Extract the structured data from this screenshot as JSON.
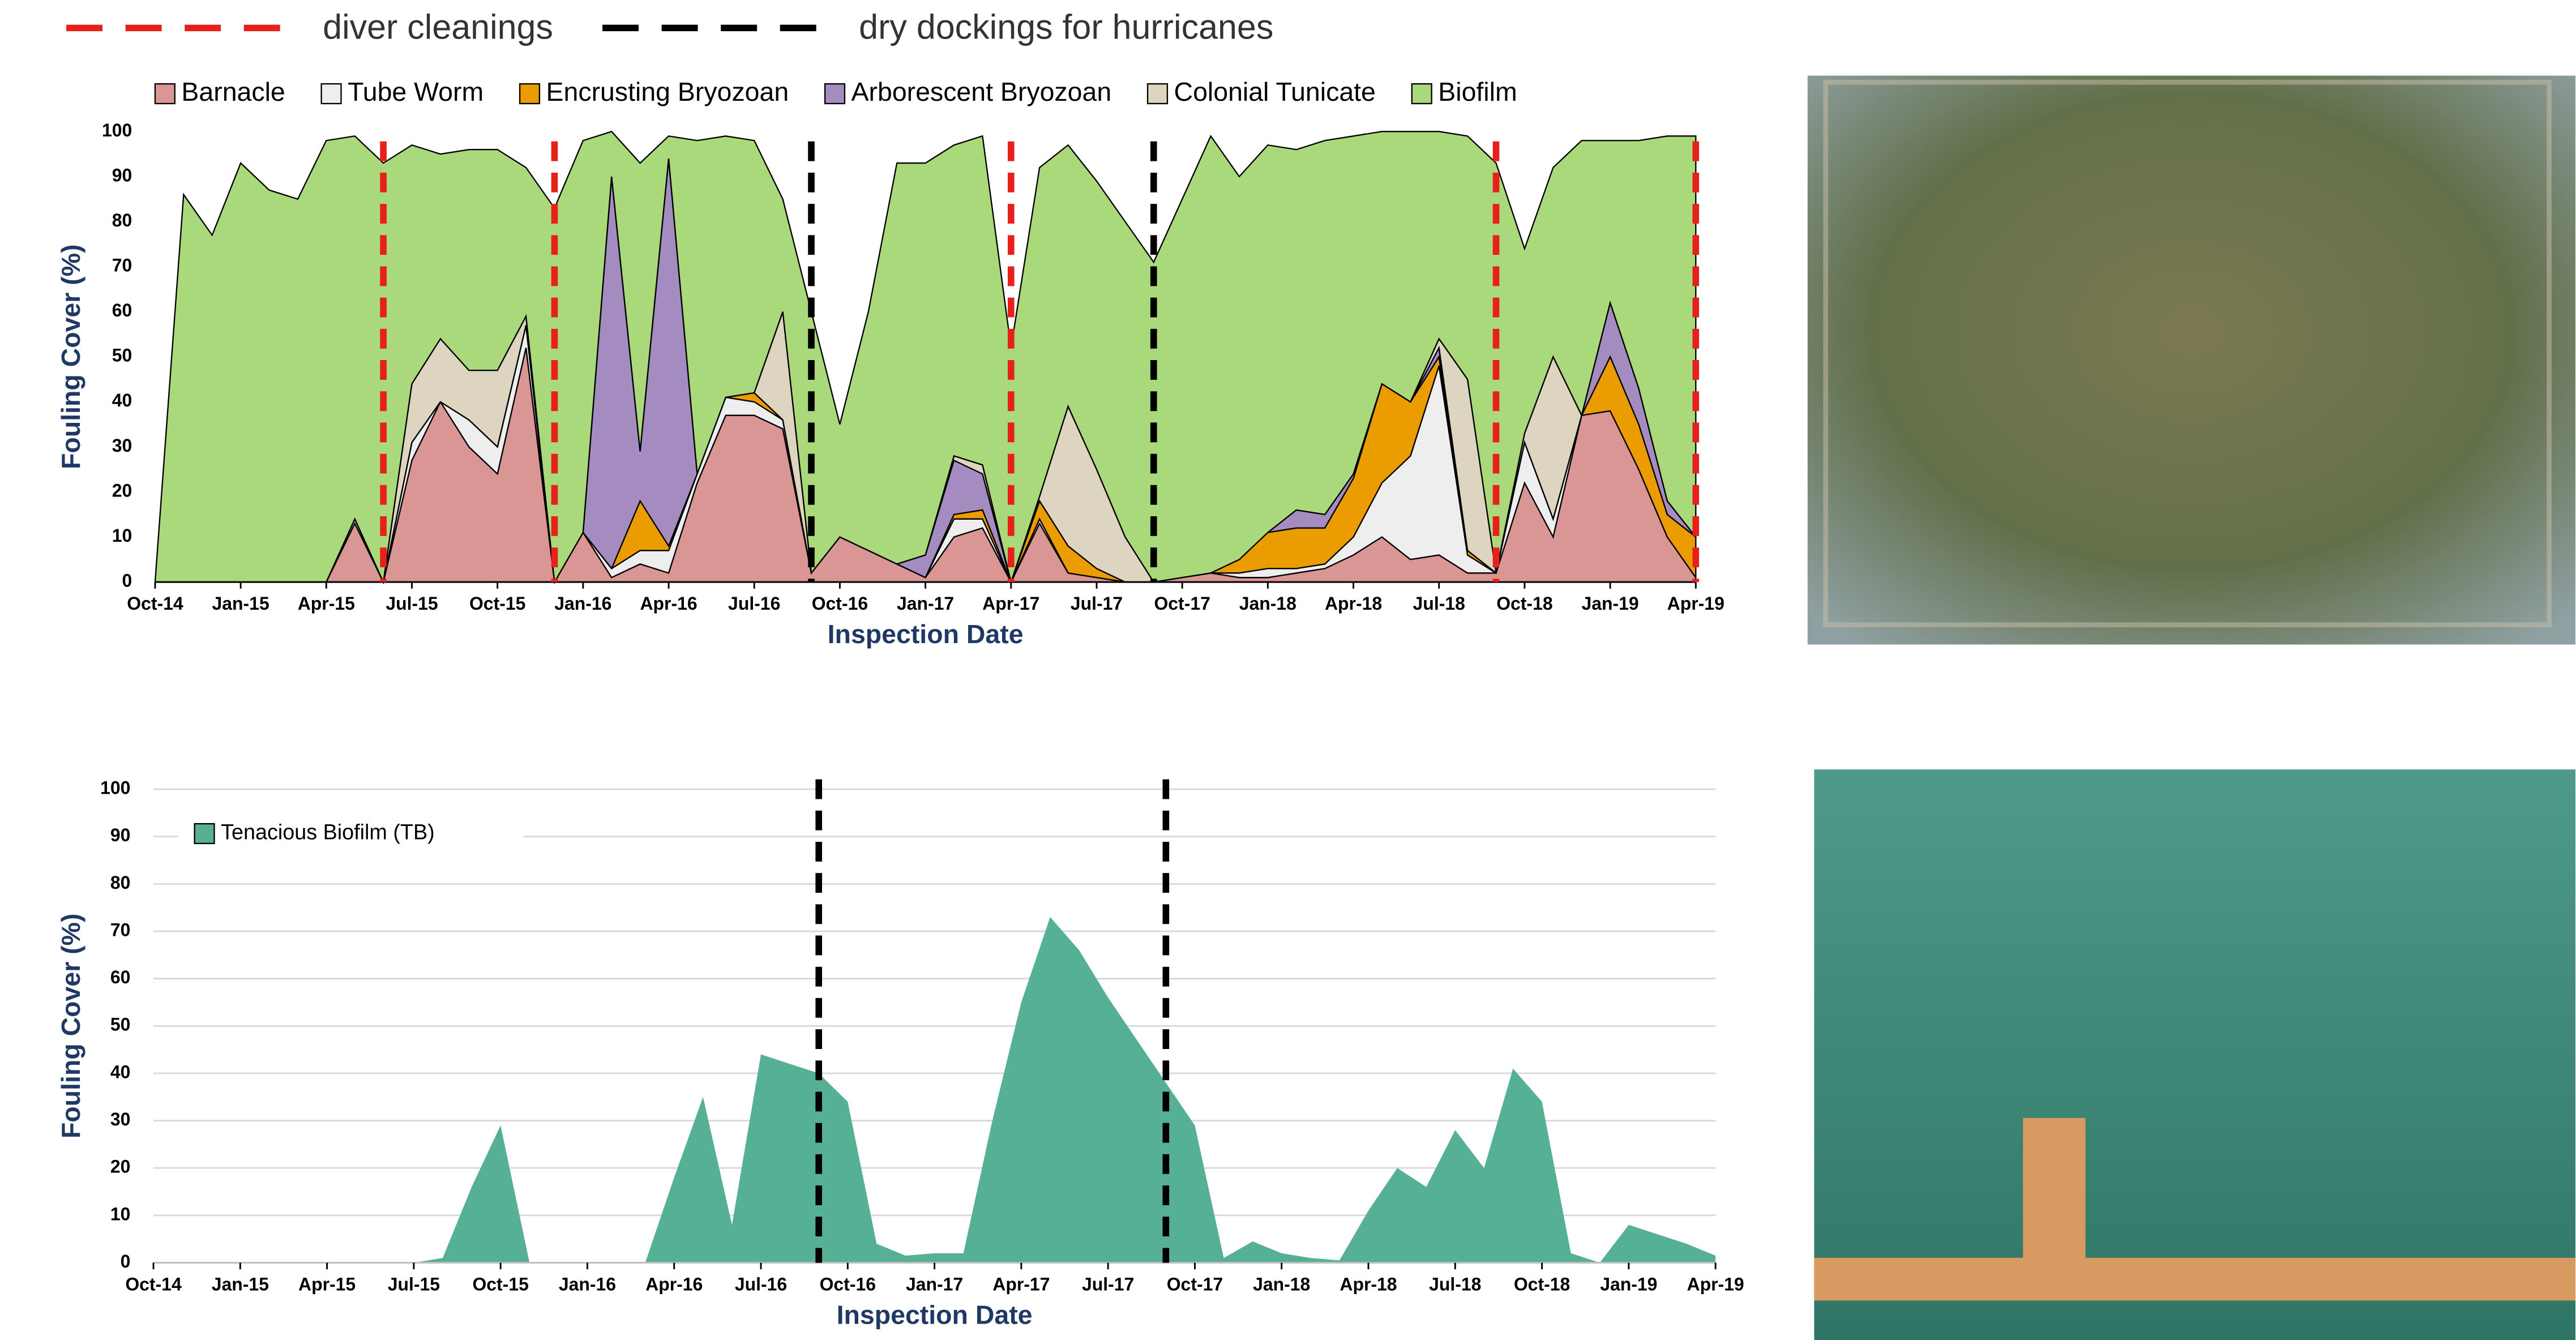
{
  "chart_data": [
    {
      "type": "area",
      "stacked": true,
      "legend": "top",
      "ylabel": "Fouling Cover (%)",
      "xlabel": "Inspection Date",
      "x": [
        "2014-10",
        "2014-11",
        "2014-12",
        "2015-01",
        "2015-02",
        "2015-03",
        "2015-04",
        "2015-05",
        "2015-06",
        "2015-07",
        "2015-08",
        "2015-09",
        "2015-10",
        "2015-11",
        "2015-12",
        "2016-01",
        "2016-02",
        "2016-03",
        "2016-04",
        "2016-05",
        "2016-06",
        "2016-07",
        "2016-08",
        "2016-09",
        "2016-10",
        "2016-11",
        "2016-12",
        "2017-01",
        "2017-02",
        "2017-03",
        "2017-04",
        "2017-05",
        "2017-06",
        "2017-07",
        "2017-08",
        "2017-09",
        "2017-10",
        "2017-11",
        "2017-12",
        "2018-01",
        "2018-02",
        "2018-03",
        "2018-04",
        "2018-05",
        "2018-06",
        "2018-07",
        "2018-08",
        "2018-09",
        "2018-10",
        "2018-11",
        "2018-12",
        "2019-01",
        "2019-02",
        "2019-03",
        "2019-04"
      ],
      "series": [
        {
          "name": "Barnacle",
          "color": "#d99694",
          "values": [
            0,
            0,
            0,
            0,
            0,
            0,
            0,
            13,
            0,
            27,
            40,
            30,
            24,
            52,
            0,
            11,
            1,
            4,
            2,
            22,
            37,
            37,
            34,
            2,
            10,
            7,
            4,
            1,
            10,
            12,
            0,
            13,
            2,
            1,
            0,
            0,
            1,
            2,
            1,
            1,
            2,
            3,
            6,
            10,
            5,
            6,
            2,
            2,
            22,
            10,
            37,
            38,
            25,
            10,
            1
          ]
        },
        {
          "name": "Tube Worm",
          "color": "#eeeeee",
          "values": [
            0,
            0,
            0,
            0,
            0,
            0,
            0,
            1,
            0,
            4,
            0,
            6,
            6,
            5,
            0,
            0,
            2,
            3,
            5,
            2,
            4,
            3,
            2,
            0,
            0,
            0,
            0,
            0,
            4,
            2,
            0,
            1,
            0,
            0,
            0,
            0,
            0,
            0,
            1,
            2,
            1,
            1,
            4,
            12,
            23,
            42,
            4,
            0,
            9,
            4,
            0,
            0,
            0,
            0,
            0
          ]
        },
        {
          "name": "Encrusting Bryozoan",
          "color": "#eb9c00",
          "values": [
            0,
            0,
            0,
            0,
            0,
            0,
            0,
            0,
            0,
            0,
            0,
            0,
            0,
            0,
            0,
            0,
            0,
            11,
            1,
            0,
            0,
            2,
            0,
            0,
            0,
            0,
            0,
            0,
            1,
            2,
            0,
            4,
            6,
            2,
            0,
            0,
            0,
            0,
            3,
            8,
            9,
            8,
            13,
            22,
            12,
            2,
            1,
            0,
            0,
            0,
            0,
            12,
            10,
            5,
            9
          ]
        },
        {
          "name": "Arborescent Bryozoan",
          "color": "#a48cc0",
          "values": [
            0,
            0,
            0,
            0,
            0,
            0,
            0,
            0,
            0,
            0,
            0,
            0,
            0,
            0,
            0,
            0,
            87,
            11,
            86,
            0,
            0,
            0,
            0,
            0,
            0,
            0,
            0,
            5,
            12,
            8,
            0,
            0,
            0,
            0,
            0,
            0,
            0,
            0,
            0,
            0,
            4,
            3,
            1,
            0,
            0,
            2,
            0,
            0,
            0,
            0,
            0,
            12,
            8,
            3,
            0
          ]
        },
        {
          "name": "Colonial Tunicate",
          "color": "#ddd5c0",
          "values": [
            0,
            0,
            0,
            0,
            0,
            0,
            0,
            0,
            0,
            13,
            14,
            11,
            17,
            2,
            0,
            0,
            0,
            0,
            0,
            0,
            0,
            0,
            24,
            0,
            0,
            0,
            0,
            0,
            1,
            2,
            0,
            1,
            31,
            22,
            10,
            0,
            0,
            0,
            0,
            0,
            0,
            0,
            0,
            0,
            0,
            2,
            38,
            0,
            2,
            36,
            0,
            0,
            0,
            0,
            0
          ]
        },
        {
          "name": "Biofilm",
          "color": "#a9d97a",
          "values": [
            0,
            86,
            77,
            93,
            87,
            85,
            98,
            85,
            93,
            53,
            41,
            49,
            49,
            33,
            83,
            87,
            10,
            64,
            5,
            74,
            58,
            56,
            25,
            58,
            25,
            53,
            89,
            87,
            69,
            73,
            52,
            73,
            58,
            64,
            70,
            71,
            84,
            97,
            85,
            86,
            80,
            83,
            75,
            56,
            60,
            46,
            54,
            91,
            41,
            42,
            61,
            36,
            55,
            81,
            89
          ]
        }
      ],
      "event_lines": [
        {
          "name": "diver cleanings",
          "color": "#e8201c",
          "dates": [
            "2015-06",
            "2015-12",
            "2017-04",
            "2018-09",
            "2019-04"
          ]
        },
        {
          "name": "dry dockings for hurricanes",
          "color": "#000000",
          "dates": [
            "2016-09",
            "2017-09"
          ]
        }
      ],
      "xlim": [
        "2014-10",
        "2019-04"
      ],
      "xticks": [
        {
          "value": "2014-10",
          "label": "Oct-14"
        },
        {
          "value": "2015-01",
          "label": "Jan-15"
        },
        {
          "value": "2015-04",
          "label": "Apr-15"
        },
        {
          "value": "2015-07",
          "label": "Jul-15"
        },
        {
          "value": "2015-10",
          "label": "Oct-15"
        },
        {
          "value": "2016-01",
          "label": "Jan-16"
        },
        {
          "value": "2016-04",
          "label": "Apr-16"
        },
        {
          "value": "2016-07",
          "label": "Jul-16"
        },
        {
          "value": "2016-10",
          "label": "Oct-16"
        },
        {
          "value": "2017-01",
          "label": "Jan-17"
        },
        {
          "value": "2017-04",
          "label": "Apr-17"
        },
        {
          "value": "2017-07",
          "label": "Jul-17"
        },
        {
          "value": "2017-10",
          "label": "Oct-17"
        },
        {
          "value": "2018-01",
          "label": "Jan-18"
        },
        {
          "value": "2018-04",
          "label": "Apr-18"
        },
        {
          "value": "2018-07",
          "label": "Jul-18"
        },
        {
          "value": "2018-10",
          "label": "Oct-18"
        },
        {
          "value": "2019-01",
          "label": "Jan-19"
        },
        {
          "value": "2019-04",
          "label": "Apr-19"
        }
      ],
      "ylim": [
        0,
        100
      ],
      "yticks": [
        0,
        10,
        20,
        30,
        40,
        50,
        60,
        70,
        80,
        90,
        100
      ],
      "grid": false
    },
    {
      "type": "area",
      "stacked": false,
      "legend": "upper left",
      "ylabel": "Fouling Cover (%)",
      "xlabel": "Inspection Date",
      "x": [
        "2014-10",
        "2014-11",
        "2014-12",
        "2015-01",
        "2015-02",
        "2015-03",
        "2015-04",
        "2015-05",
        "2015-06",
        "2015-07",
        "2015-08",
        "2015-09",
        "2015-10",
        "2015-11",
        "2015-12",
        "2016-01",
        "2016-02",
        "2016-03",
        "2016-04",
        "2016-05",
        "2016-06",
        "2016-07",
        "2016-08",
        "2016-09",
        "2016-10",
        "2016-11",
        "2016-12",
        "2017-01",
        "2017-02",
        "2017-03",
        "2017-04",
        "2017-05",
        "2017-06",
        "2017-07",
        "2017-08",
        "2017-09",
        "2017-10",
        "2017-11",
        "2017-12",
        "2018-01",
        "2018-02",
        "2018-03",
        "2018-04",
        "2018-05",
        "2018-06",
        "2018-07",
        "2018-08",
        "2018-09",
        "2018-10",
        "2018-11",
        "2018-12",
        "2019-01",
        "2019-02",
        "2019-03",
        "2019-04"
      ],
      "series": [
        {
          "name": "Tenacious Biofilm (TB)",
          "color": "#55b096",
          "values": [
            0,
            0,
            0,
            0,
            0,
            0,
            0,
            0,
            0,
            0,
            1,
            16,
            29,
            0,
            0,
            0,
            0,
            0,
            18,
            35,
            8,
            44,
            42,
            40,
            34,
            4,
            1.5,
            2,
            2,
            30,
            55,
            73,
            66,
            56,
            47,
            38,
            29,
            1,
            4.5,
            2,
            1,
            0.5,
            11,
            20,
            16,
            28,
            20,
            41,
            34,
            2,
            0,
            8,
            6,
            4,
            1.5
          ]
        }
      ],
      "event_lines": [
        {
          "color": "#000000",
          "dates": [
            "2016-09",
            "2017-09"
          ]
        }
      ],
      "xlim": [
        "2014-10",
        "2019-04"
      ],
      "xticks": [
        {
          "value": "2014-10",
          "label": "Oct-14"
        },
        {
          "value": "2015-01",
          "label": "Jan-15"
        },
        {
          "value": "2015-04",
          "label": "Apr-15"
        },
        {
          "value": "2015-07",
          "label": "Jul-15"
        },
        {
          "value": "2015-10",
          "label": "Oct-15"
        },
        {
          "value": "2016-01",
          "label": "Jan-16"
        },
        {
          "value": "2016-04",
          "label": "Apr-16"
        },
        {
          "value": "2016-07",
          "label": "Jul-16"
        },
        {
          "value": "2016-10",
          "label": "Oct-16"
        },
        {
          "value": "2017-01",
          "label": "Jan-17"
        },
        {
          "value": "2017-04",
          "label": "Apr-17"
        },
        {
          "value": "2017-07",
          "label": "Jul-17"
        },
        {
          "value": "2017-10",
          "label": "Oct-17"
        },
        {
          "value": "2018-01",
          "label": "Jan-18"
        },
        {
          "value": "2018-04",
          "label": "Apr-18"
        },
        {
          "value": "2018-07",
          "label": "Jul-18"
        },
        {
          "value": "2018-10",
          "label": "Oct-18"
        },
        {
          "value": "2019-01",
          "label": "Jan-19"
        },
        {
          "value": "2019-04",
          "label": "Apr-19"
        }
      ],
      "ylim": [
        0,
        100
      ],
      "yticks": [
        0,
        10,
        20,
        30,
        40,
        50,
        60,
        70,
        80,
        90,
        100
      ],
      "grid": true
    }
  ]
}
